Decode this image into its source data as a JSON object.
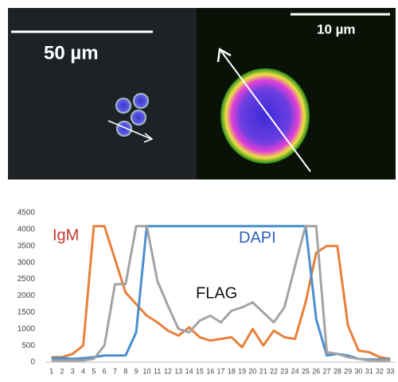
{
  "images": {
    "left_scale": "50 µm",
    "right_scale": "10 µm"
  },
  "chart_data": {
    "type": "line",
    "categories": [
      "1",
      "2",
      "3",
      "4",
      "5",
      "6",
      "7",
      "8",
      "9",
      "10",
      "11",
      "12",
      "13",
      "14",
      "15",
      "16",
      "17",
      "18",
      "19",
      "20",
      "21",
      "22",
      "23",
      "24",
      "25",
      "26",
      "27",
      "28",
      "29",
      "30",
      "31",
      "32",
      "33"
    ],
    "series": [
      {
        "name": "IgM",
        "color": "#e8803a",
        "label_color": "#c0392b",
        "values": [
          150,
          150,
          250,
          500,
          4100,
          4100,
          3100,
          2100,
          1750,
          1400,
          1200,
          950,
          800,
          1050,
          750,
          650,
          700,
          750,
          450,
          1000,
          500,
          950,
          750,
          700,
          1800,
          3300,
          3500,
          3500,
          1100,
          350,
          300,
          150,
          100
        ]
      },
      {
        "name": "DAPI",
        "color": "#4a8fd0",
        "label_color": "#2e5fb8",
        "values": [
          120,
          120,
          100,
          120,
          150,
          200,
          200,
          200,
          900,
          4100,
          4100,
          4100,
          4100,
          4100,
          4100,
          4100,
          4100,
          4100,
          4100,
          4100,
          4100,
          4100,
          4100,
          4100,
          4100,
          1300,
          200,
          250,
          200,
          100,
          80,
          80,
          80
        ]
      },
      {
        "name": "FLAG",
        "color": "#a3a3a3",
        "label_color": "#111111",
        "values": [
          50,
          50,
          50,
          50,
          100,
          500,
          2350,
          2350,
          4100,
          4100,
          2450,
          1700,
          1000,
          900,
          1250,
          1400,
          1200,
          1550,
          1650,
          1800,
          1500,
          1200,
          1650,
          2900,
          4100,
          4100,
          300,
          250,
          150,
          100,
          50,
          50,
          50
        ]
      }
    ],
    "ylim": [
      0,
      4500
    ],
    "yticks": [
      0,
      500,
      1000,
      1500,
      2000,
      2500,
      3000,
      3500,
      4000,
      4500
    ],
    "grid": false
  }
}
